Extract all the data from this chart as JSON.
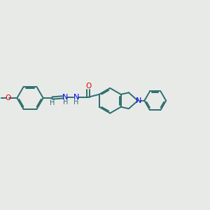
{
  "bg_color": "#e8eae8",
  "bond_color": "#2d6e6e",
  "N_color": "#0000ee",
  "O_color": "#ee0000",
  "linewidth": 1.4,
  "figsize": [
    3.0,
    3.0
  ],
  "dpi": 100,
  "xlim": [
    0,
    12
  ],
  "ylim": [
    0,
    10
  ]
}
